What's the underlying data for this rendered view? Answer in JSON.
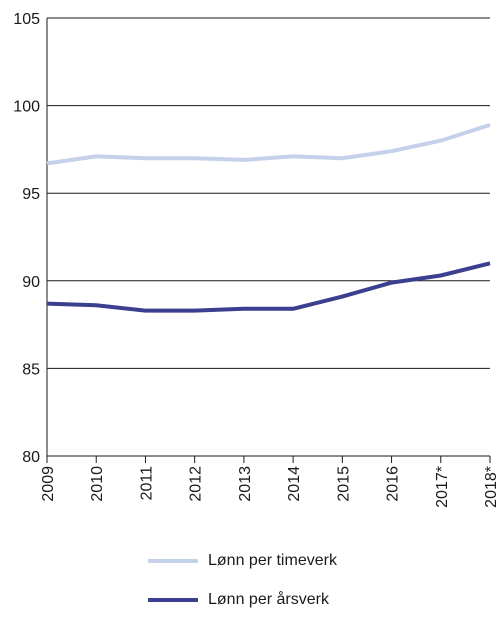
{
  "chart_data": {
    "type": "line",
    "title": "",
    "xlabel": "",
    "ylabel": "",
    "categories": [
      "2009",
      "2010",
      "2011",
      "2012",
      "2013",
      "2014",
      "2015",
      "2016",
      "2017*",
      "2018*"
    ],
    "ylim": [
      80,
      105
    ],
    "yticks": [
      80,
      85,
      90,
      95,
      100,
      105
    ],
    "grid": "horizontal",
    "legend_placement": "bottom",
    "series": [
      {
        "name": "Lønn per timeverk",
        "color": "#c5d0ea",
        "values": [
          96.7,
          97.1,
          97.0,
          97.0,
          96.9,
          97.1,
          97.0,
          97.4,
          98.0,
          98.9
        ]
      },
      {
        "name": "Lønn per årsverk",
        "color": "#3b3f8f",
        "values": [
          88.7,
          88.6,
          88.3,
          88.3,
          88.4,
          88.4,
          89.1,
          89.9,
          90.3,
          91.0
        ]
      }
    ]
  }
}
